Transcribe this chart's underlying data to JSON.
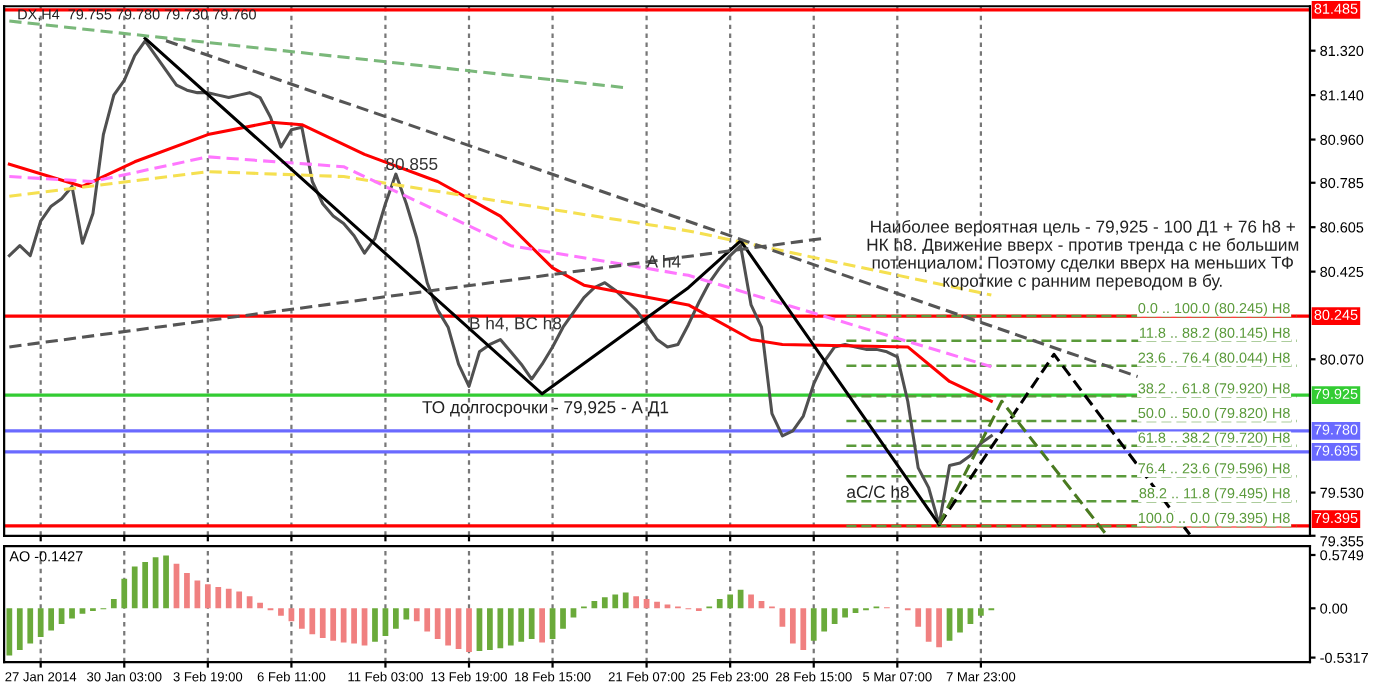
{
  "chart_data": [
    {
      "type": "line",
      "tick_labels": "y",
      "grid": "x",
      "marker": "none",
      "categories": [
        null,
        null,
        null,
        "27 Jan 2014",
        null,
        null,
        null,
        null,
        null,
        null,
        null,
        "30 Jan 03:00",
        null,
        null,
        null,
        null,
        null,
        null,
        null,
        "3 Feb 19:00",
        null,
        null,
        null,
        null,
        null,
        null,
        null,
        "6 Feb 11:00",
        null,
        null,
        null,
        null,
        null,
        null,
        null,
        null,
        "11 Feb 03:00",
        null,
        null,
        null,
        null,
        null,
        null,
        null,
        "13 Feb 19:00",
        null,
        null,
        null,
        null,
        null,
        null,
        null,
        "18 Feb 15:00",
        null,
        null,
        null,
        null,
        null,
        null,
        null,
        null,
        "21 Feb 07:00",
        null,
        null,
        null,
        null,
        null,
        null,
        null,
        "25 Feb 23:00",
        null,
        null,
        null,
        null,
        null,
        null,
        null,
        "28 Feb 15:00",
        null,
        null,
        null,
        null,
        null,
        null,
        null,
        "5 Mar 07:00",
        null,
        null,
        null,
        null,
        null,
        null,
        null,
        "7 Mar 23:00",
        null,
        null,
        null,
        null,
        null,
        null,
        null,
        null,
        null,
        null,
        null,
        null,
        null,
        null,
        null,
        null,
        null,
        null,
        null,
        null,
        null,
        null,
        null,
        null,
        null,
        null,
        null,
        null,
        null,
        null,
        null
      ],
      "ylim": [
        79.355,
        81.5
      ],
      "yticks": [
        {
          "value": 79.355,
          "label": "79.355"
        },
        {
          "value": 79.53,
          "label": "79.530"
        },
        {
          "value": 80.07,
          "label": "80.070"
        },
        {
          "value": 80.425,
          "label": "80.425"
        },
        {
          "value": 80.605,
          "label": "80.605"
        },
        {
          "value": 80.785,
          "label": "80.785"
        },
        {
          "value": 80.96,
          "label": "80.960"
        },
        {
          "value": 81.14,
          "label": "81.140"
        },
        {
          "value": 81.32,
          "label": "81.320"
        }
      ],
      "series": [
        {
          "color": "#505050",
          "values": [
            80.49,
            80.53,
            80.49,
            80.63,
            80.69,
            80.72,
            80.77,
            80.54,
            80.66,
            80.98,
            81.14,
            81.2,
            81.3,
            81.36,
            81.3,
            81.24,
            81.18,
            81.16,
            81.15,
            81.15,
            81.14,
            81.13,
            81.14,
            81.15,
            81.13,
            81.05,
            80.93,
            81.0,
            81.01,
            80.79,
            80.7,
            80.65,
            80.62,
            80.57,
            80.5,
            80.56,
            80.7,
            80.82,
            80.7,
            80.56,
            80.38,
            80.27,
            80.2,
            80.05,
            79.96,
            80.1,
            80.13,
            80.15,
            80.1,
            80.05,
            79.99,
            80.05,
            80.12,
            80.2,
            80.26,
            80.32,
            80.36,
            80.38,
            80.35,
            80.31,
            80.27,
            80.21,
            80.15,
            80.12,
            80.13,
            80.21,
            80.3,
            80.38,
            80.44,
            80.49,
            80.53,
            80.29,
            80.2,
            79.85,
            79.76,
            79.78,
            79.84,
            79.97,
            80.06,
            80.12,
            80.13,
            80.12,
            80.11,
            80.11,
            80.1,
            80.08,
            79.9,
            79.63,
            79.55,
            79.4,
            79.64,
            79.65,
            79.68,
            79.73,
            79.76,
            null,
            null,
            null,
            null,
            null,
            null,
            null,
            null,
            null,
            null,
            null,
            null,
            null,
            null,
            null,
            null,
            null,
            null,
            null,
            null,
            null,
            null,
            null,
            null,
            null,
            null,
            null,
            null,
            null,
            null
          ]
        },
        {
          "color": "#ff0000",
          "values": [
            80.86,
            null,
            null,
            null,
            null,
            null,
            null,
            80.77,
            null,
            null,
            null,
            null,
            80.87,
            null,
            null,
            null,
            null,
            null,
            null,
            80.98,
            null,
            null,
            null,
            null,
            null,
            81.03,
            null,
            null,
            81.02,
            null,
            null,
            null,
            null,
            null,
            80.9,
            null,
            null,
            null,
            null,
            null,
            null,
            80.79,
            null,
            null,
            null,
            null,
            null,
            80.65,
            null,
            null,
            null,
            null,
            80.44,
            null,
            null,
            80.37,
            null,
            null,
            null,
            null,
            null,
            null,
            null,
            null,
            null,
            80.29,
            null,
            null,
            null,
            null,
            null,
            80.15,
            null,
            null,
            80.13,
            null,
            null,
            null,
            null,
            null,
            null,
            null,
            null,
            null,
            null,
            null,
            80.12,
            null,
            null,
            null,
            79.98,
            null,
            null,
            null,
            79.9,
            null,
            null,
            null,
            null,
            null,
            null,
            null,
            null,
            null,
            null,
            null,
            null,
            null,
            null,
            null,
            null,
            null,
            null,
            null,
            null,
            null,
            null,
            null,
            null,
            null,
            null,
            null,
            null,
            null,
            null
          ]
        },
        {
          "color": "#f5e050",
          "line_style": "dashed",
          "values": [
            80.73,
            null,
            null,
            null,
            null,
            null,
            null,
            null,
            null,
            null,
            null,
            null,
            null,
            null,
            null,
            null,
            null,
            null,
            null,
            80.83,
            null,
            null,
            null,
            null,
            null,
            null,
            null,
            null,
            null,
            null,
            null,
            null,
            80.81,
            null,
            null,
            null,
            null,
            null,
            null,
            null,
            null,
            null,
            null,
            null,
            null,
            null,
            null,
            80.71,
            null,
            null,
            null,
            null,
            null,
            null,
            null,
            null,
            null,
            null,
            null,
            null,
            null,
            null,
            null,
            null,
            null,
            80.59,
            null,
            null,
            null,
            null,
            null,
            null,
            null,
            null,
            null,
            null,
            null,
            null,
            null,
            null,
            null,
            null,
            null,
            null,
            null,
            null,
            null,
            null,
            null,
            null,
            null,
            null,
            null,
            null,
            80.33,
            null,
            null,
            null,
            null,
            null,
            null,
            null,
            null,
            null,
            null,
            null,
            null,
            null,
            null,
            null,
            null,
            null,
            null,
            null,
            null,
            null,
            null,
            null,
            null,
            null,
            null,
            null,
            null,
            null,
            null
          ]
        },
        {
          "color": "#ff77ff",
          "line_style": "dashed",
          "values": [
            80.81,
            null,
            null,
            null,
            null,
            null,
            null,
            null,
            80.79,
            null,
            null,
            null,
            null,
            null,
            null,
            null,
            null,
            null,
            null,
            80.89,
            null,
            null,
            null,
            null,
            null,
            null,
            null,
            null,
            null,
            null,
            null,
            null,
            80.85,
            null,
            null,
            null,
            null,
            null,
            null,
            null,
            null,
            null,
            null,
            null,
            null,
            null,
            null,
            null,
            80.53,
            null,
            null,
            null,
            null,
            null,
            null,
            null,
            null,
            null,
            null,
            null,
            null,
            null,
            null,
            null,
            null,
            80.41,
            null,
            null,
            null,
            null,
            null,
            null,
            null,
            null,
            null,
            null,
            null,
            null,
            null,
            null,
            null,
            null,
            null,
            null,
            null,
            null,
            null,
            null,
            null,
            null,
            null,
            null,
            null,
            null,
            80.04,
            null,
            null,
            null,
            null,
            null,
            null,
            null,
            null,
            null,
            null,
            null,
            null,
            null,
            null,
            null,
            null,
            null,
            null,
            null,
            null,
            null,
            null,
            null,
            null,
            null,
            null,
            null,
            null,
            null,
            null
          ]
        },
        {
          "color": "#000000",
          "values": [
            null,
            null,
            null,
            null,
            null,
            null,
            null,
            null,
            null,
            null,
            null,
            null,
            null,
            81.37,
            null,
            null,
            null,
            null,
            null,
            null,
            null,
            null,
            null,
            null,
            null,
            null,
            null,
            null,
            null,
            null,
            null,
            null,
            null,
            null,
            null,
            null,
            null,
            null,
            null,
            null,
            null,
            null,
            null,
            null,
            null,
            null,
            null,
            null,
            null,
            null,
            null,
            79.93,
            null,
            null,
            null,
            null,
            null,
            null,
            null,
            null,
            null,
            null,
            null,
            null,
            null,
            80.36,
            null,
            null,
            null,
            null,
            80.55,
            null,
            null,
            null,
            null,
            null,
            null,
            null,
            null,
            null,
            null,
            null,
            null,
            null,
            null,
            null,
            null,
            null,
            null,
            79.4,
            null,
            null,
            null,
            null,
            null,
            null,
            null,
            null,
            null,
            null,
            null,
            null,
            null,
            null,
            null,
            null,
            null,
            null,
            null,
            null,
            null,
            null,
            null,
            null,
            null,
            null,
            null,
            null,
            null,
            null,
            null,
            null,
            null,
            null,
            null
          ]
        },
        {
          "color": "#000000",
          "line_style": "dashed",
          "values": [
            null,
            null,
            null,
            null,
            null,
            null,
            null,
            null,
            null,
            null,
            null,
            null,
            null,
            null,
            null,
            null,
            null,
            null,
            null,
            null,
            null,
            null,
            null,
            null,
            null,
            null,
            null,
            null,
            null,
            null,
            null,
            null,
            null,
            null,
            null,
            null,
            null,
            null,
            null,
            null,
            null,
            null,
            null,
            null,
            null,
            null,
            null,
            null,
            null,
            null,
            null,
            null,
            null,
            null,
            null,
            null,
            null,
            null,
            null,
            null,
            null,
            null,
            null,
            null,
            null,
            null,
            null,
            null,
            null,
            null,
            null,
            null,
            null,
            null,
            null,
            null,
            null,
            null,
            null,
            null,
            null,
            null,
            null,
            null,
            null,
            null,
            null,
            null,
            null,
            79.4,
            null,
            null,
            null,
            null,
            null,
            null,
            null,
            null,
            null,
            null,
            80.09,
            null,
            null,
            null,
            null,
            null,
            null,
            null,
            null,
            null,
            null,
            null,
            null,
            79.36,
            null,
            null,
            null,
            null,
            null,
            null,
            null,
            null,
            null,
            null,
            null
          ]
        },
        {
          "color": "#4a7a20",
          "line_style": "dashed",
          "values": [
            null,
            null,
            null,
            null,
            null,
            null,
            null,
            null,
            null,
            null,
            null,
            null,
            null,
            null,
            null,
            null,
            null,
            null,
            null,
            null,
            null,
            null,
            null,
            null,
            null,
            null,
            null,
            null,
            null,
            null,
            null,
            null,
            null,
            null,
            null,
            null,
            null,
            null,
            null,
            null,
            null,
            null,
            null,
            null,
            null,
            null,
            null,
            null,
            null,
            null,
            null,
            null,
            null,
            null,
            null,
            null,
            null,
            null,
            null,
            null,
            null,
            null,
            null,
            null,
            null,
            null,
            null,
            null,
            null,
            null,
            null,
            null,
            null,
            null,
            null,
            null,
            null,
            null,
            null,
            null,
            null,
            null,
            null,
            null,
            null,
            null,
            null,
            null,
            null,
            79.4,
            null,
            null,
            null,
            null,
            null,
            79.9,
            null,
            null,
            null,
            null,
            null,
            null,
            null,
            null,
            null,
            79.36,
            null,
            null,
            null,
            null,
            null,
            null,
            null,
            null,
            null,
            null,
            null,
            null,
            null,
            null,
            null,
            null,
            null,
            null,
            null
          ]
        },
        {
          "color": "#7ab87a",
          "line_style": "dashed",
          "values": [
            81.44,
            null,
            null,
            null,
            null,
            null,
            null,
            null,
            null,
            null,
            null,
            null,
            null,
            null,
            null,
            null,
            null,
            null,
            null,
            null,
            null,
            null,
            null,
            null,
            null,
            null,
            null,
            null,
            null,
            null,
            null,
            null,
            null,
            null,
            null,
            null,
            null,
            null,
            null,
            null,
            null,
            null,
            null,
            null,
            null,
            null,
            null,
            null,
            null,
            null,
            null,
            null,
            null,
            null,
            null,
            null,
            null,
            null,
            null,
            81.17,
            null,
            null,
            null,
            null,
            null,
            null,
            null,
            null,
            null,
            null,
            null,
            null,
            null,
            null,
            null,
            null,
            null,
            null,
            null,
            null,
            null,
            null,
            null,
            null,
            null,
            null,
            null,
            null,
            null,
            null,
            null,
            null,
            null,
            null,
            null,
            null,
            null,
            null,
            null,
            null,
            null,
            null,
            null,
            null,
            null,
            null,
            null,
            null,
            null,
            null,
            null,
            null,
            null,
            null,
            null,
            null,
            null,
            null,
            null,
            null,
            null,
            null,
            null,
            null,
            null
          ]
        },
        {
          "color": "#555555",
          "line_style": "dashed",
          "values": [
            null,
            null,
            null,
            null,
            null,
            null,
            null,
            null,
            null,
            null,
            null,
            null,
            null,
            null,
            null,
            81.36,
            null,
            null,
            null,
            null,
            null,
            null,
            null,
            null,
            null,
            null,
            null,
            null,
            null,
            null,
            null,
            null,
            null,
            null,
            null,
            null,
            null,
            null,
            null,
            null,
            null,
            null,
            null,
            null,
            null,
            null,
            null,
            null,
            null,
            null,
            null,
            null,
            null,
            null,
            null,
            null,
            null,
            null,
            null,
            null,
            null,
            null,
            null,
            null,
            null,
            null,
            null,
            null,
            null,
            null,
            null,
            null,
            null,
            null,
            null,
            null,
            null,
            null,
            null,
            null,
            null,
            null,
            null,
            null,
            null,
            null,
            null,
            null,
            null,
            null,
            null,
            null,
            null,
            null,
            null,
            null,
            null,
            null,
            null,
            null,
            null,
            null,
            null,
            null,
            null,
            null,
            null,
            null,
            80.0,
            null,
            null,
            null,
            null,
            null,
            null,
            null,
            null,
            null,
            null,
            null,
            null,
            null,
            null,
            null,
            null
          ]
        },
        {
          "color": "#555555",
          "line_style": "dashed",
          "values": [
            80.12,
            null,
            null,
            null,
            null,
            null,
            null,
            null,
            null,
            null,
            null,
            null,
            null,
            null,
            null,
            null,
            null,
            null,
            null,
            null,
            null,
            null,
            null,
            null,
            null,
            null,
            null,
            null,
            null,
            null,
            null,
            null,
            null,
            null,
            null,
            null,
            null,
            null,
            null,
            null,
            null,
            null,
            null,
            null,
            null,
            null,
            null,
            null,
            null,
            null,
            null,
            null,
            null,
            null,
            null,
            null,
            null,
            null,
            null,
            null,
            null,
            null,
            null,
            null,
            null,
            null,
            null,
            null,
            null,
            null,
            null,
            null,
            null,
            null,
            null,
            null,
            null,
            null,
            80.56,
            null,
            null,
            null,
            null,
            null,
            null,
            null,
            null,
            null,
            null,
            null,
            null,
            null,
            null,
            null,
            null,
            null,
            null,
            null,
            null,
            null,
            null,
            null,
            null,
            null,
            null,
            null,
            null,
            null,
            null,
            null,
            null,
            null,
            null,
            null,
            null,
            null,
            null,
            null,
            null,
            null,
            null,
            null,
            null,
            null,
            null
          ]
        }
      ],
      "ref_lines": [
        {
          "axis": "y",
          "value": 81.485,
          "label": "81.485",
          "color": "#ff0000"
        },
        {
          "axis": "y",
          "value": 80.245,
          "label": "80.245",
          "color": "#ff0000"
        },
        {
          "axis": "y",
          "value": 79.925,
          "label": "79.925",
          "color": "#33cc33"
        },
        {
          "axis": "y",
          "value": 79.78,
          "label": "79.780",
          "color": "#6a6aff"
        },
        {
          "axis": "y",
          "value": 79.695,
          "label": "79.695",
          "color": "#6a6aff"
        },
        {
          "axis": "y",
          "value": 79.395,
          "label": "79.395",
          "color": "#ff0000"
        },
        {
          "axis": "y",
          "value": 80.245,
          "label": "0.0 .. 100.0 (80.245) H8",
          "color": "#5a9a3a",
          "line_style": "dashed"
        },
        {
          "axis": "y",
          "value": 80.145,
          "label": "11.8 .. 88.2 (80.145) H8",
          "color": "#5a9a3a",
          "line_style": "dashed"
        },
        {
          "axis": "y",
          "value": 80.044,
          "label": "23.6 .. 76.4 (80.044) H8",
          "color": "#5a9a3a",
          "line_style": "dashed"
        },
        {
          "axis": "y",
          "value": 79.92,
          "label": "38.2 .. 61.8 (79.920) H8",
          "color": "#5a9a3a",
          "line_style": "dashed"
        },
        {
          "axis": "y",
          "value": 79.82,
          "label": "50.0 .. 50.0 (79.820) H8",
          "color": "#5a9a3a",
          "line_style": "dashed"
        },
        {
          "axis": "y",
          "value": 79.72,
          "label": "61.8 .. 38.2 (79.720) H8",
          "color": "#5a9a3a",
          "line_style": "dashed"
        },
        {
          "axis": "y",
          "value": 79.596,
          "label": "76.4 .. 23.6 (79.596) H8",
          "color": "#5a9a3a",
          "line_style": "dashed"
        },
        {
          "axis": "y",
          "value": 79.495,
          "label": "88.2 .. 11.8 (79.495) H8",
          "color": "#5a9a3a",
          "line_style": "dashed"
        },
        {
          "axis": "y",
          "value": 79.395,
          "label": "100.0 .. 0.0 (79.395) H8",
          "color": "#5a9a3a",
          "line_style": "dashed"
        }
      ],
      "annotations": [
        "DX,H4  79.755 79.780 79.730 79.760",
        "Наиболее вероятная цель - 79,925 - 100 Д1 + 76 h8 +\nНК h8. Движение вверх - против тренда с не большим\nпотенциалом. Поэтому сделки вверх на меньших ТФ\nкороткие с ранним переводом в бу.",
        "ТО долгосрочки - 79,925 - А Д1",
        {
          "text": "80.855",
          "x": "11 Feb 03:00",
          "y": 80.855
        },
        {
          "text": "A h4",
          "x": "21 Feb 07:00",
          "y": 80.46
        },
        {
          "text": "B h4, BC h8",
          "x": "13 Feb 19:00",
          "y": 80.21
        },
        "aC/C h8"
      ]
    },
    {
      "type": "bar",
      "title": "AO -0.1427",
      "grid": "x",
      "ylim": [
        -0.58,
        0.67
      ],
      "categories": [
        null,
        null,
        null,
        "27 Jan 2014",
        null,
        null,
        null,
        null,
        null,
        null,
        null,
        "30 Jan 03:00",
        null,
        null,
        null,
        null,
        null,
        null,
        null,
        "3 Feb 19:00",
        null,
        null,
        null,
        null,
        null,
        null,
        null,
        "6 Feb 11:00",
        null,
        null,
        null,
        null,
        null,
        null,
        null,
        null,
        "11 Feb 03:00",
        null,
        null,
        null,
        null,
        null,
        null,
        null,
        "13 Feb 19:00",
        null,
        null,
        null,
        null,
        null,
        null,
        null,
        "18 Feb 15:00",
        null,
        null,
        null,
        null,
        null,
        null,
        null,
        null,
        "21 Feb 07:00",
        null,
        null,
        null,
        null,
        null,
        null,
        null,
        "25 Feb 23:00",
        null,
        null,
        null,
        null,
        null,
        null,
        null,
        "28 Feb 15:00",
        null,
        null,
        null,
        null,
        null,
        null,
        null,
        "5 Mar 07:00",
        null,
        null,
        null,
        null,
        null,
        null,
        null,
        "7 Mar 23:00",
        null,
        null,
        null,
        null,
        null,
        null,
        null,
        null,
        null,
        null,
        null,
        null,
        null,
        null,
        null,
        null,
        null,
        null,
        null,
        null,
        null,
        null,
        null,
        null,
        null,
        null,
        null,
        null,
        null,
        null,
        null
      ],
      "yticks": [
        {
          "value": 0.5749,
          "label": "0.5749"
        },
        {
          "value": 0,
          "label": "0.00"
        },
        {
          "value": -0.5317,
          "label": "-0.5317"
        }
      ],
      "values": [
        -0.51,
        -0.45,
        -0.38,
        -0.31,
        -0.24,
        -0.17,
        -0.11,
        -0.06,
        -0.03,
        -0.01,
        0.1,
        0.32,
        0.45,
        0.5,
        0.55,
        0.57,
        0.48,
        0.38,
        0.3,
        0.26,
        0.23,
        0.21,
        0.18,
        0.13,
        0.06,
        -0.02,
        -0.08,
        -0.14,
        -0.22,
        -0.28,
        -0.32,
        -0.35,
        -0.37,
        -0.38,
        -0.4,
        -0.36,
        -0.3,
        -0.22,
        -0.12,
        -0.14,
        -0.25,
        -0.33,
        -0.4,
        -0.44,
        -0.47,
        -0.46,
        -0.45,
        -0.43,
        -0.4,
        -0.36,
        -0.33,
        -0.37,
        -0.33,
        -0.22,
        -0.1,
        0.02,
        0.08,
        0.12,
        0.15,
        0.17,
        0.13,
        0.1,
        0.07,
        0.04,
        0.02,
        -0.01,
        -0.03,
        0.02,
        0.1,
        0.15,
        0.2,
        0.15,
        0.08,
        0.02,
        -0.2,
        -0.38,
        -0.45,
        -0.35,
        -0.25,
        -0.17,
        -0.1,
        -0.05,
        -0.02,
        0.02,
        0.01,
        null,
        -0.02,
        -0.2,
        -0.36,
        -0.42,
        -0.35,
        -0.26,
        -0.17,
        -0.08,
        -0.02,
        null,
        null,
        null,
        null,
        null,
        null,
        null,
        null,
        null,
        null,
        null,
        null,
        null,
        null,
        null,
        null,
        null,
        null,
        null,
        null,
        null,
        null,
        null,
        null,
        null,
        null,
        null,
        null,
        null,
        null
      ],
      "colors": [
        "#6aaa3a",
        "#6aaa3a",
        "#6aaa3a",
        "#6aaa3a",
        "#6aaa3a",
        "#6aaa3a",
        "#6aaa3a",
        "#6aaa3a",
        "#6aaa3a",
        "#6aaa3a",
        "#6aaa3a",
        "#6aaa3a",
        "#6aaa3a",
        "#6aaa3a",
        "#6aaa3a",
        "#6aaa3a",
        "#f08080",
        "#f08080",
        "#f08080",
        "#f08080",
        "#f08080",
        "#f08080",
        "#f08080",
        "#f08080",
        "#f08080",
        "#f08080",
        "#f08080",
        "#f08080",
        "#f08080",
        "#f08080",
        "#f08080",
        "#f08080",
        "#f08080",
        "#f08080",
        "#f08080",
        "#6aaa3a",
        "#6aaa3a",
        "#6aaa3a",
        "#6aaa3a",
        "#f08080",
        "#f08080",
        "#f08080",
        "#f08080",
        "#f08080",
        "#f08080",
        "#6aaa3a",
        "#6aaa3a",
        "#6aaa3a",
        "#6aaa3a",
        "#6aaa3a",
        "#6aaa3a",
        "#f08080",
        "#6aaa3a",
        "#6aaa3a",
        "#6aaa3a",
        "#6aaa3a",
        "#6aaa3a",
        "#6aaa3a",
        "#6aaa3a",
        "#6aaa3a",
        "#f08080",
        "#f08080",
        "#f08080",
        "#f08080",
        "#f08080",
        "#f08080",
        "#f08080",
        "#6aaa3a",
        "#6aaa3a",
        "#6aaa3a",
        "#6aaa3a",
        "#f08080",
        "#f08080",
        "#f08080",
        "#f08080",
        "#f08080",
        "#f08080",
        "#6aaa3a",
        "#6aaa3a",
        "#6aaa3a",
        "#6aaa3a",
        "#6aaa3a",
        "#6aaa3a",
        "#6aaa3a",
        "#f08080",
        "#f08080",
        "#f08080",
        "#f08080",
        "#f08080",
        "#f08080",
        "#6aaa3a",
        "#6aaa3a",
        "#6aaa3a",
        "#6aaa3a",
        "#6aaa3a",
        null,
        null,
        null,
        null,
        null,
        null,
        null,
        null,
        null,
        null,
        null,
        null,
        null,
        null,
        null,
        null,
        null,
        null,
        null,
        null,
        null,
        null,
        null,
        null,
        null,
        null,
        null,
        null,
        null,
        null
      ]
    }
  ]
}
